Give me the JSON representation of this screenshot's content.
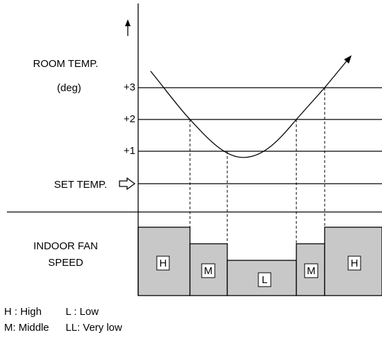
{
  "y_axis": {
    "label": "ROOM TEMP.",
    "unit": "(deg)"
  },
  "levels": [
    "+3",
    "+2",
    "+1"
  ],
  "set_temp": "SET TEMP.",
  "fan_speed": {
    "label_line1": "INDOOR FAN",
    "label_line2": "SPEED",
    "segments": [
      "H",
      "M",
      "L",
      "M",
      "H"
    ]
  },
  "legend": [
    "H : High",
    "L : Low",
    "M: Middle",
    "LL: Very low"
  ]
}
